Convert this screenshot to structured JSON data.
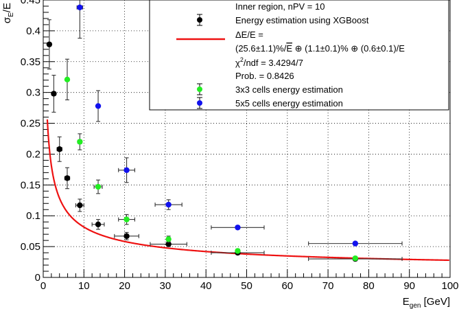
{
  "chart_data": {
    "type": "scatter",
    "xlabel_main": "E",
    "xlabel_sub": "gen",
    "xlabel_unit": " [GeV]",
    "ylabel_main": "σ",
    "ylabel_sub": "E",
    "ylabel_tail": "/E",
    "xlim": [
      0,
      100
    ],
    "ylim": [
      0,
      0.45
    ],
    "x_ticks": [
      0,
      10,
      20,
      30,
      40,
      50,
      60,
      70,
      80,
      90,
      100
    ],
    "x_tick_labels": [
      "0",
      "10",
      "20",
      "30",
      "40",
      "50",
      "60",
      "70",
      "80",
      "90",
      "100"
    ],
    "y_ticks": [
      0,
      0.05,
      0.1,
      0.15,
      0.2,
      0.25,
      0.3,
      0.35,
      0.4,
      0.45
    ],
    "y_tick_labels": [
      "0",
      "0.05",
      "0.1",
      "0.15",
      "0.2",
      "0.25",
      "0.3",
      "0.35",
      "0.4",
      "0.45"
    ],
    "grid": true,
    "legend_position": "top-right",
    "legend": {
      "header": "Inner region, nPV = 10",
      "xgb_label": "Energy estimation using XGBoost",
      "fit_line1": "ΔE/E =",
      "fit_line2a": "(25.6±1.1)%/",
      "fit_line2_sqrt": "E",
      "fit_line2b": " ⊕ (1.1±0.1)% ⊕ (0.6±0.1)/E",
      "chi2_chi": "χ",
      "chi2_sup": "2",
      "chi2_rest": "/ndf = 3.4294/7",
      "prob": "Prob. = 0.8426",
      "cells3_label": "3x3 cells energy estimation",
      "cells5_label": "5x5 cells energy estimation"
    },
    "fit": {
      "a": 0.256,
      "b": 0.011,
      "c": 0.006,
      "color": "#ee1111"
    },
    "series": [
      {
        "color": "#000000",
        "points": [
          {
            "x": 1.5,
            "y": 0.378,
            "xerr": 0.4,
            "yerr": 0.04
          },
          {
            "x": 2.6,
            "y": 0.298,
            "xerr": 0.5,
            "yerr": 0.03
          },
          {
            "x": 4.0,
            "y": 0.208,
            "xerr": 0.6,
            "yerr": 0.02
          },
          {
            "x": 5.9,
            "y": 0.161,
            "xerr": 0.6,
            "yerr": 0.017
          },
          {
            "x": 9.0,
            "y": 0.117,
            "xerr": 1.0,
            "yerr": 0.01
          },
          {
            "x": 13.5,
            "y": 0.086,
            "xerr": 1.5,
            "yerr": 0.008
          },
          {
            "x": 20.5,
            "y": 0.067,
            "xerr": 3.0,
            "yerr": 0.006
          },
          {
            "x": 30.8,
            "y": 0.054,
            "xerr": 4.5,
            "yerr": 0.004
          },
          {
            "x": 47.8,
            "y": 0.04,
            "xerr": 6.5,
            "yerr": 0.003
          },
          {
            "x": 76.7,
            "y": 0.03,
            "xerr": 11.5,
            "yerr": 0.003
          }
        ]
      },
      {
        "color": "#22ee22",
        "points": [
          {
            "x": 5.9,
            "y": 0.321,
            "xerr": 0.0,
            "yerr": 0.033
          },
          {
            "x": 9.0,
            "y": 0.22,
            "xerr": 0.5,
            "yerr": 0.013
          },
          {
            "x": 13.5,
            "y": 0.147,
            "xerr": 1.0,
            "yerr": 0.011
          },
          {
            "x": 20.5,
            "y": 0.094,
            "xerr": 2.0,
            "yerr": 0.008
          },
          {
            "x": 30.8,
            "y": 0.062,
            "xerr": 0.0,
            "yerr": 0.005
          },
          {
            "x": 47.8,
            "y": 0.043,
            "xerr": 0.0,
            "yerr": 0.003
          },
          {
            "x": 76.7,
            "y": 0.031,
            "xerr": 0.0,
            "yerr": 0.003
          }
        ]
      },
      {
        "color": "#1111ee",
        "points": [
          {
            "x": 9.0,
            "y": 0.438,
            "xerr": 0.7,
            "yerr": 0.05
          },
          {
            "x": 13.5,
            "y": 0.278,
            "xerr": 0.0,
            "yerr": 0.025
          },
          {
            "x": 20.5,
            "y": 0.174,
            "xerr": 2.0,
            "yerr": 0.02
          },
          {
            "x": 30.8,
            "y": 0.118,
            "xerr": 3.3,
            "yerr": 0.008
          },
          {
            "x": 47.8,
            "y": 0.081,
            "xerr": 6.5,
            "yerr": 0.002
          },
          {
            "x": 76.7,
            "y": 0.055,
            "xerr": 11.5,
            "yerr": 0.002
          }
        ]
      }
    ]
  }
}
